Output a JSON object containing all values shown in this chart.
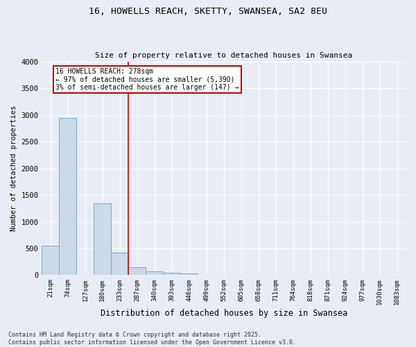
{
  "title_line1": "16, HOWELLS REACH, SKETTY, SWANSEA, SA2 8EU",
  "title_line2": "Size of property relative to detached houses in Swansea",
  "xlabel": "Distribution of detached houses by size in Swansea",
  "ylabel": "Number of detached properties",
  "categories": [
    "21sqm",
    "74sqm",
    "127sqm",
    "180sqm",
    "233sqm",
    "287sqm",
    "340sqm",
    "393sqm",
    "446sqm",
    "499sqm",
    "552sqm",
    "605sqm",
    "658sqm",
    "711sqm",
    "764sqm",
    "818sqm",
    "871sqm",
    "924sqm",
    "977sqm",
    "1030sqm",
    "1083sqm"
  ],
  "values": [
    550,
    2950,
    0,
    1350,
    420,
    155,
    70,
    50,
    35,
    0,
    0,
    0,
    0,
    0,
    0,
    0,
    0,
    0,
    0,
    0,
    0
  ],
  "bar_color": "#ccd9e8",
  "bar_edge_color": "#7aaac8",
  "vline_color": "#cc0000",
  "annotation_text": "16 HOWELLS REACH: 278sqm\n← 97% of detached houses are smaller (5,390)\n3% of semi-detached houses are larger (147) →",
  "annotation_box_color": "#cc0000",
  "ylim": [
    0,
    4000
  ],
  "yticks": [
    0,
    500,
    1000,
    1500,
    2000,
    2500,
    3000,
    3500,
    4000
  ],
  "footer_line1": "Contains HM Land Registry data © Crown copyright and database right 2025.",
  "footer_line2": "Contains public sector information licensed under the Open Government Licence v3.0.",
  "bg_color": "#e8edf5",
  "plot_bg_color": "#e8edf5",
  "grid_color": "#ffffff",
  "vline_pos": 4.5
}
